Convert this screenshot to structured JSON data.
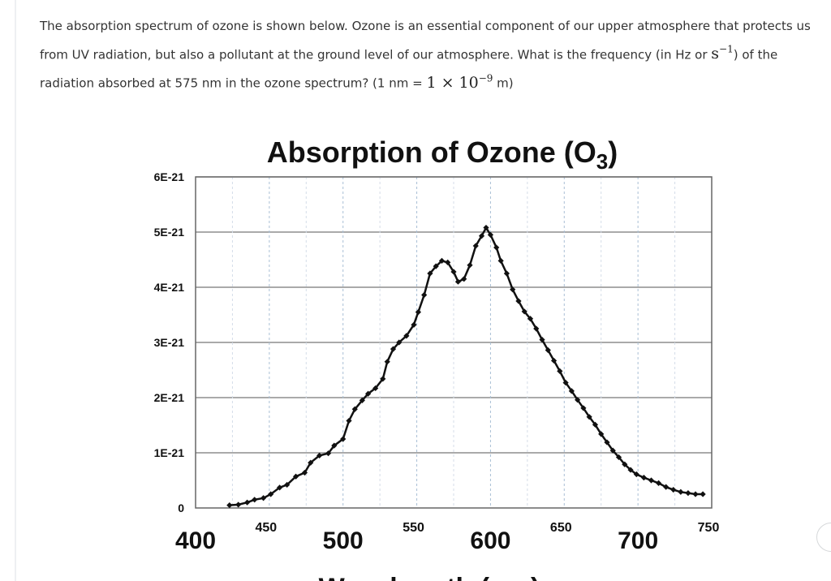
{
  "question": {
    "part1": "The absorption spectrum of ozone is shown below. Ozone is an essential component of our upper atmosphere that protects us from UV radiation, but also a pollutant at the ground level of our atmosphere. What is the frequency (in Hz or ",
    "unit_base": "s",
    "unit_exp": "−1",
    "part2": ") of the radiation absorbed at 575 nm in the ozone spectrum? (1 nm = ",
    "conv_coef": "1 × 10",
    "conv_exp": "−9",
    "conv_unit": " m)"
  },
  "chart_data": {
    "type": "line",
    "title": "Absorption of Ozone (O",
    "title_subscript": "3",
    "title_close": ")",
    "xlabel": "Wavelength (nm)",
    "ylabel": "",
    "xlim": [
      400,
      750
    ],
    "ylim": [
      0,
      6e-21
    ],
    "y_ticks": [
      {
        "value": 0,
        "label": "0"
      },
      {
        "value": 1e-21,
        "label": "1E-21"
      },
      {
        "value": 2e-21,
        "label": "2E-21"
      },
      {
        "value": 3e-21,
        "label": "3E-21"
      },
      {
        "value": 4e-21,
        "label": "4E-21"
      },
      {
        "value": 5e-21,
        "label": "5E-21"
      },
      {
        "value": 6e-21,
        "label": "6E-21"
      }
    ],
    "x_ticks_major": [
      {
        "value": 400,
        "label": "400"
      },
      {
        "value": 500,
        "label": "500"
      },
      {
        "value": 600,
        "label": "600"
      },
      {
        "value": 700,
        "label": "700"
      }
    ],
    "x_ticks_minor": [
      {
        "value": 450,
        "label": "450"
      },
      {
        "value": 550,
        "label": "550"
      },
      {
        "value": 650,
        "label": "650"
      },
      {
        "value": 750,
        "label": "750"
      }
    ],
    "grid": true,
    "marker_color": "#111111",
    "series": [
      {
        "name": "",
        "points": [
          [
            423,
            5e-23
          ],
          [
            429,
            6e-23
          ],
          [
            435,
            1e-22
          ],
          [
            440,
            1.5e-22
          ],
          [
            446,
            1.8e-22
          ],
          [
            451,
            2.5e-22
          ],
          [
            457,
            3.7e-22
          ],
          [
            462,
            4.2e-22
          ],
          [
            468,
            5.7e-22
          ],
          [
            474,
            6.4e-22
          ],
          [
            478,
            8.2e-22
          ],
          [
            484,
            9.5e-22
          ],
          [
            490,
            9.9e-22
          ],
          [
            494,
            1.13e-21
          ],
          [
            500,
            1.25e-21
          ],
          [
            504,
            1.58e-21
          ],
          [
            508,
            1.79e-21
          ],
          [
            513,
            1.95e-21
          ],
          [
            517,
            2.07e-21
          ],
          [
            522,
            2.17e-21
          ],
          [
            527,
            2.34e-21
          ],
          [
            530,
            2.65e-21
          ],
          [
            534,
            2.88e-21
          ],
          [
            538,
            3e-21
          ],
          [
            543,
            3.12e-21
          ],
          [
            548,
            3.32e-21
          ],
          [
            551,
            3.55e-21
          ],
          [
            555,
            3.86e-21
          ],
          [
            559,
            4.25e-21
          ],
          [
            563,
            4.38e-21
          ],
          [
            567,
            4.48e-21
          ],
          [
            571,
            4.45e-21
          ],
          [
            575,
            4.28e-21
          ],
          [
            578,
            4.1e-21
          ],
          [
            582,
            4.15e-21
          ],
          [
            586,
            4.4e-21
          ],
          [
            590,
            4.75e-21
          ],
          [
            594,
            4.93e-21
          ],
          [
            597,
            5.08e-21
          ],
          [
            600,
            4.95e-21
          ],
          [
            604,
            4.72e-21
          ],
          [
            607,
            4.48e-21
          ],
          [
            611,
            4.25e-21
          ],
          [
            615,
            3.96e-21
          ],
          [
            619,
            3.75e-21
          ],
          [
            623,
            3.56e-21
          ],
          [
            627,
            3.43e-21
          ],
          [
            631,
            3.25e-21
          ],
          [
            635,
            3.05e-21
          ],
          [
            639,
            2.86e-21
          ],
          [
            643,
            2.67e-21
          ],
          [
            647,
            2.48e-21
          ],
          [
            651,
            2.27e-21
          ],
          [
            655,
            2.12e-21
          ],
          [
            659,
            1.96e-21
          ],
          [
            663,
            1.81e-21
          ],
          [
            667,
            1.65e-21
          ],
          [
            671,
            1.51e-21
          ],
          [
            675,
            1.34e-21
          ],
          [
            679,
            1.19e-21
          ],
          [
            683,
            1.04e-21
          ],
          [
            687,
            9.2e-22
          ],
          [
            691,
            7.9e-22
          ],
          [
            695,
            6.9e-22
          ],
          [
            699,
            6.1e-22
          ],
          [
            704,
            5.5e-22
          ],
          [
            709,
            5e-22
          ],
          [
            714,
            4.5e-22
          ],
          [
            719,
            3.8e-22
          ],
          [
            724,
            3.3e-22
          ],
          [
            729,
            2.9e-22
          ],
          [
            734,
            2.7e-22
          ],
          [
            739,
            2.5e-22
          ],
          [
            744,
            2.5e-22
          ]
        ]
      }
    ]
  }
}
